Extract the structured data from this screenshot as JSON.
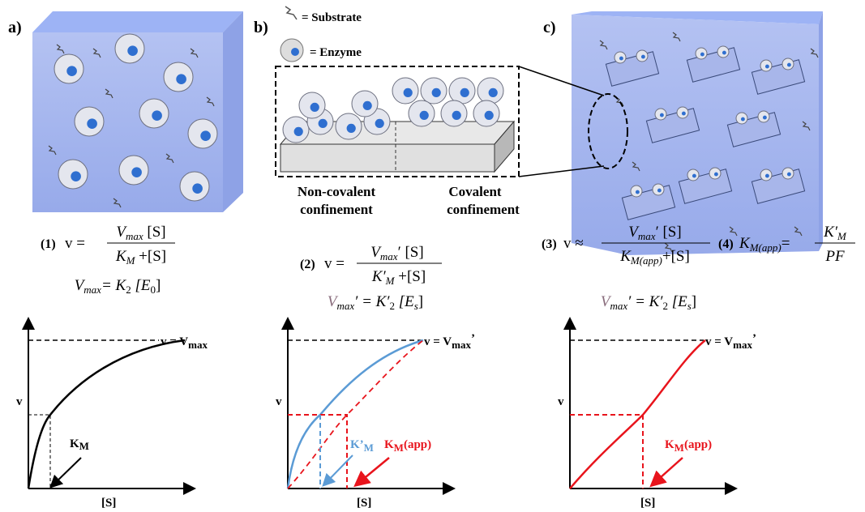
{
  "panels": [
    {
      "label": "a)"
    },
    {
      "label": "b)"
    },
    {
      "label": "c)"
    }
  ],
  "legend": {
    "substrate": "= Substrate",
    "enzyme": "= Enzyme"
  },
  "confinement": {
    "non_covalent": [
      "Non-covalent",
      "confinement"
    ],
    "covalent": [
      "Covalent",
      "confinement"
    ]
  },
  "equations": {
    "eq1": {
      "label": "(1)",
      "lhs": "v =",
      "num": [
        "V",
        "max",
        " [S]"
      ],
      "den": [
        "K",
        "M",
        " +[S]"
      ]
    },
    "eq2": {
      "label": "(2)",
      "lhs": "v =",
      "num": [
        "V",
        "max",
        "′ [S]"
      ],
      "den": [
        "K′",
        "M",
        " +[S]"
      ]
    },
    "eq3": {
      "label": "(3)",
      "lhs": "v ≈",
      "num": [
        "V",
        "max",
        "′ [S]"
      ],
      "den": [
        "K",
        "M(app)",
        "+[S]"
      ]
    },
    "eq4": {
      "label": "(4)",
      "lhs": [
        "K",
        "M(app)",
        "="
      ],
      "num": [
        "K′",
        "M"
      ],
      "den": "PF"
    }
  },
  "vmax": [
    [
      "V",
      "max",
      "= K",
      "2",
      " [E",
      "0",
      "]"
    ],
    [
      "V",
      "max",
      "′ = K′",
      "2",
      " [E",
      "s",
      "]"
    ],
    [
      "V",
      "max",
      "′ = K′",
      "2",
      " [E",
      "s",
      "]"
    ]
  ],
  "graphs": [
    {
      "vmax_label": [
        "v = V",
        "max"
      ],
      "y_label": "v",
      "x_label": "[S]",
      "km_label": [
        "K",
        "M"
      ]
    },
    {
      "vmax_label": [
        "v = V",
        "max",
        "’"
      ],
      "y_label": "v",
      "x_label": "[S]",
      "km_label": [
        "K’",
        "M"
      ],
      "kmapp_label": [
        "K",
        "M",
        "(app)"
      ]
    },
    {
      "vmax_label": [
        "v = V",
        "max",
        "’"
      ],
      "y_label": "v",
      "x_label": "[S]",
      "kmapp_label": [
        "K",
        "M",
        "(app)"
      ]
    }
  ]
}
